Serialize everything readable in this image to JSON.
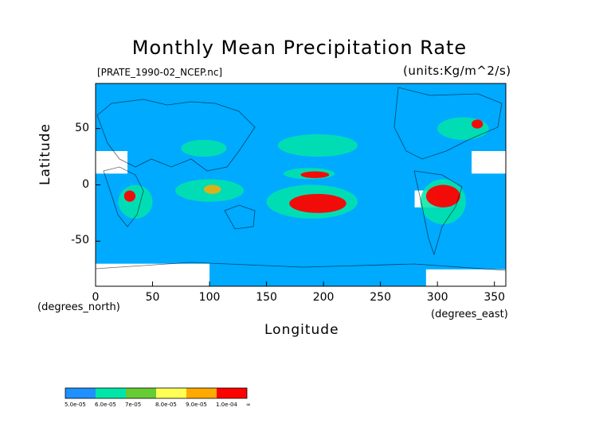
{
  "chart_data": {
    "type": "heatmap",
    "title": "Monthly Mean Precipitation Rate",
    "subtitle_left": "[PRATE_1990-02_NCEP.nc]",
    "subtitle_right": "(units:Kg/m^2/s)",
    "xlabel": "Longitude",
    "ylabel": "Latitude",
    "x_unit_note": "(degrees_east)",
    "y_unit_note": "(degrees_north)",
    "xlim": [
      0,
      360
    ],
    "ylim": [
      -90,
      90
    ],
    "x_ticks": [
      0,
      50,
      100,
      150,
      200,
      250,
      300,
      350
    ],
    "y_ticks": [
      50,
      0,
      -50
    ],
    "colorbar": {
      "labels": [
        "5.0e-05",
        "6.0e-05",
        "7e-05",
        "8.0e-05",
        "9.0e-05",
        "1.0e-04",
        "∞"
      ],
      "colors": [
        "#1e90ff",
        "#00e6a8",
        "#66cc33",
        "#ffff55",
        "#ffaa00",
        "#ff0000"
      ]
    },
    "background_color": "#00aaff",
    "regions": [
      {
        "level": 1,
        "lon": [
          20,
          50
        ],
        "lat": [
          -30,
          0
        ]
      },
      {
        "level": 5,
        "lon": [
          25,
          35
        ],
        "lat": [
          -15,
          -5
        ]
      },
      {
        "level": 1,
        "lon": [
          70,
          130
        ],
        "lat": [
          -15,
          5
        ]
      },
      {
        "level": 4,
        "lon": [
          95,
          110
        ],
        "lat": [
          -8,
          0
        ]
      },
      {
        "level": 1,
        "lon": [
          150,
          230
        ],
        "lat": [
          -30,
          0
        ]
      },
      {
        "level": 5,
        "lon": [
          170,
          220
        ],
        "lat": [
          -25,
          -8
        ]
      },
      {
        "level": 1,
        "lon": [
          165,
          210
        ],
        "lat": [
          5,
          15
        ]
      },
      {
        "level": 5,
        "lon": [
          180,
          205
        ],
        "lat": [
          6,
          12
        ]
      },
      {
        "level": 1,
        "lon": [
          285,
          325
        ],
        "lat": [
          -35,
          5
        ]
      },
      {
        "level": 5,
        "lon": [
          290,
          320
        ],
        "lat": [
          -20,
          0
        ]
      },
      {
        "level": 1,
        "lon": [
          300,
          345
        ],
        "lat": [
          40,
          60
        ]
      },
      {
        "level": 5,
        "lon": [
          330,
          340
        ],
        "lat": [
          50,
          58
        ]
      },
      {
        "level": 1,
        "lon": [
          160,
          230
        ],
        "lat": [
          25,
          45
        ]
      },
      {
        "level": 1,
        "lon": [
          75,
          115
        ],
        "lat": [
          25,
          40
        ]
      }
    ],
    "masked_regions": [
      {
        "lon": [
          0,
          28
        ],
        "lat": [
          10,
          30
        ]
      },
      {
        "lon": [
          330,
          360
        ],
        "lat": [
          10,
          30
        ]
      },
      {
        "lon": [
          0,
          100
        ],
        "lat": [
          -90,
          -70
        ]
      },
      {
        "lon": [
          290,
          360
        ],
        "lat": [
          -90,
          -75
        ]
      },
      {
        "lon": [
          280,
          300
        ],
        "lat": [
          -20,
          -5
        ]
      }
    ]
  }
}
